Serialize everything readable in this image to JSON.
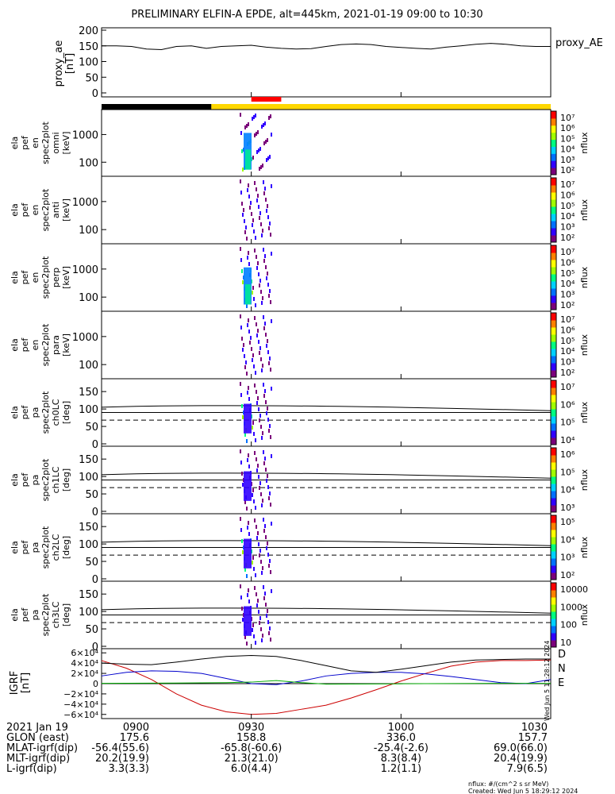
{
  "title": "PRELIMINARY ELFIN-A EPDE, alt=445km, 2021-01-19 09:00 to 10:30",
  "chart_data": [
    {
      "type": "line",
      "name": "proxy_ae",
      "ylabel": [
        "proxy_ae",
        "[nT]"
      ],
      "yticks": [
        "200",
        "150",
        "100",
        "50",
        "0"
      ],
      "ylim": [
        0,
        200
      ],
      "series": [
        {
          "name": "proxy_AE",
          "x": [
            0,
            3,
            6,
            9,
            12,
            15,
            18,
            21,
            24,
            27,
            30,
            33,
            36,
            39,
            42,
            45,
            48,
            51,
            54,
            57,
            60,
            63,
            66,
            69,
            72,
            75,
            78,
            81,
            84,
            87,
            90
          ],
          "values": [
            150,
            150,
            148,
            140,
            138,
            148,
            150,
            142,
            148,
            150,
            152,
            146,
            142,
            140,
            141,
            148,
            154,
            156,
            154,
            148,
            145,
            142,
            140,
            146,
            150,
            155,
            158,
            155,
            150,
            148,
            148
          ]
        }
      ]
    },
    {
      "type": "timeline",
      "name": "orbit-bar",
      "segments": [
        {
          "start": 0,
          "end": 22,
          "color": "#000000"
        },
        {
          "start": 22,
          "end": 90,
          "color": "#ffd700"
        }
      ],
      "markers": [
        {
          "start": 30,
          "end": 36,
          "color": "#ff0000"
        }
      ]
    },
    {
      "type": "heatmap",
      "name": "spec2plot-en-omni",
      "ylabel": [
        "ela",
        "pef",
        "en",
        "spec2plot",
        "omni",
        "[keV]"
      ],
      "yticks": [
        "1000",
        "100"
      ],
      "scale": "log",
      "colorbar": {
        "label": "nflux",
        "ticks": [
          "10⁷",
          "10⁶",
          "10⁵",
          "10⁴",
          "10³",
          "10²"
        ]
      },
      "ylim": [
        60,
        7000
      ]
    },
    {
      "type": "heatmap",
      "name": "spec2plot-en-anti",
      "ylabel": [
        "ela",
        "pef",
        "en",
        "spec2plot",
        "anti",
        "[keV]"
      ],
      "yticks": [
        "1000",
        "100"
      ],
      "scale": "log",
      "colorbar": {
        "label": "nflux",
        "ticks": [
          "10⁷",
          "10⁶",
          "10⁵",
          "10⁴",
          "10³",
          "10²"
        ]
      },
      "ylim": [
        60,
        7000
      ]
    },
    {
      "type": "heatmap",
      "name": "spec2plot-en-perp",
      "ylabel": [
        "ela",
        "pef",
        "en",
        "spec2plot",
        "perp",
        "[keV]"
      ],
      "yticks": [
        "1000",
        "100"
      ],
      "scale": "log",
      "colorbar": {
        "label": "nflux",
        "ticks": [
          "10⁷",
          "10⁶",
          "10⁵",
          "10⁴",
          "10³",
          "10²"
        ]
      },
      "ylim": [
        60,
        7000
      ]
    },
    {
      "type": "heatmap",
      "name": "spec2plot-en-para",
      "ylabel": [
        "ela",
        "pef",
        "en",
        "spec2plot",
        "para",
        "[keV]"
      ],
      "yticks": [
        "1000",
        "100"
      ],
      "scale": "log",
      "colorbar": {
        "label": "nflux",
        "ticks": [
          "10⁷",
          "10⁶",
          "10⁵",
          "10⁴",
          "10³",
          "10²"
        ]
      },
      "ylim": [
        60,
        7000
      ]
    },
    {
      "type": "heatmap",
      "name": "spec2plot-ch0LC",
      "ylabel": [
        "ela",
        "pef",
        "pa",
        "spec2plot",
        "ch0LC",
        "[deg]"
      ],
      "yticks": [
        "150",
        "100",
        "50",
        "0"
      ],
      "ylim": [
        0,
        180
      ],
      "colorbar": {
        "label": "nflux",
        "ticks": [
          "10⁷",
          "10⁶",
          "10⁵",
          "10⁴"
        ]
      }
    },
    {
      "type": "heatmap",
      "name": "spec2plot-ch1LC",
      "ylabel": [
        "ela",
        "pef",
        "pa",
        "spec2plot",
        "ch1LC",
        "[deg]"
      ],
      "yticks": [
        "150",
        "100",
        "50",
        "0"
      ],
      "ylim": [
        0,
        180
      ],
      "colorbar": {
        "label": "nflux",
        "ticks": [
          "10⁶",
          "10⁵",
          "10⁴",
          "10³"
        ]
      }
    },
    {
      "type": "heatmap",
      "name": "spec2plot-ch2LC",
      "ylabel": [
        "ela",
        "pef",
        "pa",
        "spec2plot",
        "ch2LC",
        "[deg]"
      ],
      "yticks": [
        "150",
        "100",
        "50",
        "0"
      ],
      "ylim": [
        0,
        180
      ],
      "colorbar": {
        "label": "nflux",
        "ticks": [
          "10⁵",
          "10⁴",
          "10³",
          "10²"
        ]
      }
    },
    {
      "type": "heatmap",
      "name": "spec2plot-ch3LC",
      "ylabel": [
        "ela",
        "pef",
        "pa",
        "spec2plot",
        "ch3LC",
        "[deg]"
      ],
      "yticks": [
        "150",
        "100",
        "50",
        "0"
      ],
      "ylim": [
        0,
        180
      ],
      "colorbar": {
        "label": "nflux",
        "ticks": [
          "10000",
          "1000",
          "100",
          "10"
        ]
      }
    },
    {
      "type": "line",
      "name": "igrf",
      "ylabel": [
        "IGRF",
        "[nT]"
      ],
      "yticks": [
        "6×10⁴",
        "4×10⁴",
        "2×10⁴",
        "0",
        "−2×10⁴",
        "−4×10⁴",
        "−6×10⁴"
      ],
      "ylim": [
        -65000,
        65000
      ],
      "series": [
        {
          "name": "D",
          "color": "#cc0000",
          "x": [
            0,
            5,
            10,
            15,
            20,
            25,
            30,
            35,
            40,
            45,
            50,
            55,
            60,
            65,
            70,
            75,
            80,
            85,
            90
          ],
          "values": [
            45000,
            30000,
            8000,
            -20000,
            -42000,
            -55000,
            -60000,
            -58000,
            -50000,
            -42000,
            -28000,
            -12000,
            5000,
            20000,
            34000,
            42000,
            45000,
            45000,
            46000
          ]
        },
        {
          "name": "N",
          "color": "#0000cc",
          "x": [
            0,
            5,
            10,
            15,
            20,
            25,
            30,
            35,
            40,
            45,
            50,
            55,
            60,
            65,
            70,
            75,
            80,
            85,
            90
          ],
          "values": [
            15000,
            22000,
            25000,
            24000,
            20000,
            10000,
            0,
            -2000,
            5000,
            15000,
            20000,
            22000,
            22000,
            19000,
            14000,
            8000,
            2000,
            0,
            8000
          ]
        },
        {
          "name": "E",
          "color": "#00aa00",
          "x": [
            0,
            5,
            10,
            15,
            20,
            25,
            30,
            35,
            40,
            45,
            50,
            55,
            60,
            65,
            70,
            75,
            80,
            85,
            90
          ],
          "values": [
            500,
            700,
            900,
            1200,
            1500,
            2000,
            3000,
            6000,
            2000,
            -1000,
            -800,
            -500,
            -300,
            0,
            200,
            400,
            500,
            500,
            500
          ]
        },
        {
          "name": "total",
          "color": "#000000",
          "x": [
            0,
            5,
            10,
            15,
            20,
            25,
            30,
            35,
            40,
            45,
            50,
            55,
            60,
            65,
            70,
            75,
            80,
            85,
            90
          ],
          "values": [
            40000,
            38000,
            37000,
            42000,
            48000,
            53000,
            55000,
            53000,
            45000,
            35000,
            25000,
            22000,
            28000,
            35000,
            42000,
            46000,
            47000,
            48000,
            48000
          ]
        }
      ],
      "legend": [
        "D",
        "N",
        "E"
      ]
    }
  ],
  "xaxis": {
    "ticks": [
      "0900",
      "0930",
      "1000",
      "1030"
    ],
    "rows": [
      {
        "label": "2021 Jan 19",
        "values": [
          "0900",
          "0930",
          "1000",
          "1030"
        ]
      },
      {
        "label": "GLON (east)",
        "values": [
          "175.6",
          "158.8",
          "336.0",
          "157.7"
        ]
      },
      {
        "label": "MLAT-igrf(dip)",
        "values": [
          "-56.4(55.6)",
          "-65.8(-60.6)",
          "-25.4(-2.6)",
          "69.0(66.0)"
        ]
      },
      {
        "label": "MLT-igrf(dip)",
        "values": [
          "20.2(19.9)",
          "21.3(21.0)",
          "8.3(8.4)",
          "20.4(19.9)"
        ]
      },
      {
        "label": "L-igrf(dip)",
        "values": [
          "3.3(3.3)",
          "6.0(4.4)",
          "1.2(1.1)",
          "7.9(6.5)"
        ]
      }
    ]
  },
  "footer": {
    "units": "nflux: #/(cm^2 s sr MeV)",
    "created": "Created: Wed Jun  5 18:29:12 2024",
    "side_stamp": "Wed Jun  5 11:28:12 2024"
  }
}
